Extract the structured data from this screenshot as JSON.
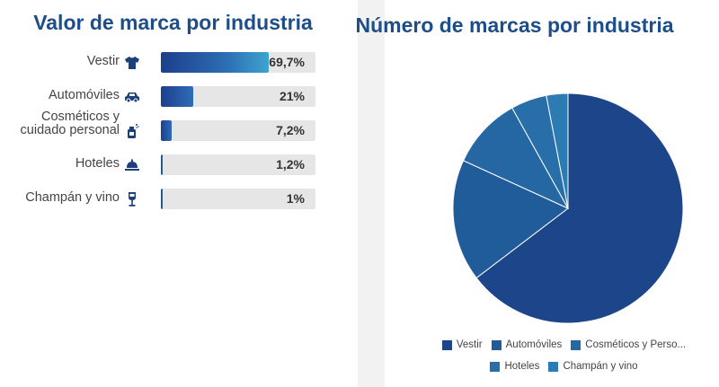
{
  "left_title": "Valor de marca por industria",
  "right_title": "Número de marcas por industria",
  "colors": {
    "title": "#1d4e89",
    "track": "#e6e6e6",
    "pie": [
      "#1d4589",
      "#205c99",
      "#2467a3",
      "#286fa9",
      "#2c7bb3"
    ]
  },
  "chart_data": [
    {
      "type": "bar",
      "title": "Valor de marca por industria",
      "categories": [
        "Vestir",
        "Automóviles",
        "Cosméticos y cuidado personal",
        "Hoteles",
        "Champán y vino"
      ],
      "icons": [
        "shirt-icon",
        "car-icon",
        "cosmetics-icon",
        "hotel-bell-icon",
        "wine-glass-icon"
      ],
      "values": [
        69.7,
        21,
        7.2,
        1.2,
        1
      ],
      "value_labels": [
        "69,7%",
        "21%",
        "7,2%",
        "1,2%",
        "1%"
      ],
      "ylim": [
        0,
        100
      ]
    },
    {
      "type": "pie",
      "title": "Número de marcas por industria",
      "categories": [
        "Vestir",
        "Automóviles",
        "Cosméticos y Perso...",
        "Hoteles",
        "Champán y vino"
      ],
      "values": [
        64,
        17,
        10,
        5,
        3
      ]
    }
  ]
}
